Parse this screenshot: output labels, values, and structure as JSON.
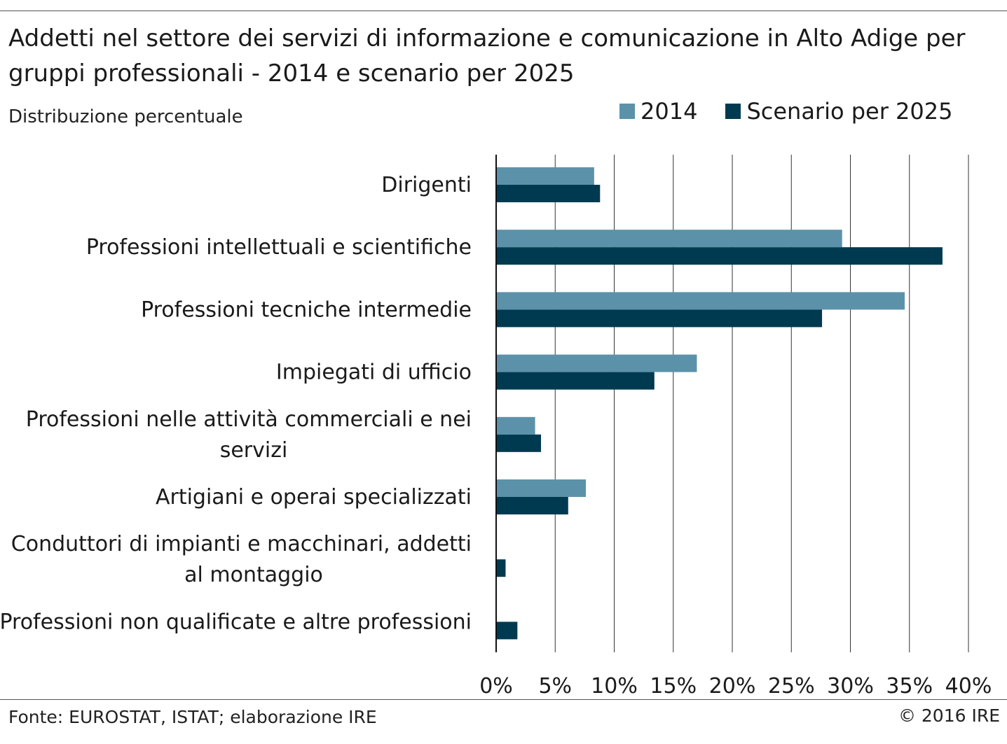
{
  "header": {
    "title": "Addetti nel settore dei servizi di informazione e comunicazione in Alto Adige per gruppi professionali - 2014 e scenario per 2025",
    "subtitle": "Distribuzione percentuale"
  },
  "footer": {
    "source": "Fonte: EUROSTAT, ISTAT; elaborazione IRE",
    "copyright": "© 2016 IRE"
  },
  "colors": {
    "series_2014": "#5b92aa",
    "series_2025": "#003a50",
    "grid": "#333333"
  },
  "chart_data": {
    "type": "bar",
    "orientation": "horizontal",
    "title": "Addetti nel settore dei servizi di informazione e comunicazione in Alto Adige per gruppi professionali - 2014 e scenario per 2025",
    "subtitle": "Distribuzione percentuale",
    "categories": [
      "Dirigenti",
      "Professioni intellettuali e scientifiche",
      "Professioni tecniche intermedie",
      "Impiegati di ufficio",
      "Professioni nelle attività commerciali e nei servizi",
      "Artigiani e operai specializzati",
      "Conduttori di impianti e macchinari, addetti al montaggio",
      "Professioni non qualificate e altre professioni"
    ],
    "category_lines": [
      [
        "Dirigenti"
      ],
      [
        "Professioni intellettuali e scientifiche"
      ],
      [
        "Professioni tecniche intermedie"
      ],
      [
        "Impiegati di ufficio"
      ],
      [
        "Professioni nelle attività commerciali e nei",
        "servizi"
      ],
      [
        "Artigiani e operai specializzati"
      ],
      [
        "Conduttori di impianti e macchinari, addetti",
        "al montaggio"
      ],
      [
        "Professioni non qualificate e altre professioni"
      ]
    ],
    "series": [
      {
        "name": "2014",
        "color": "#5b92aa",
        "values": [
          8.3,
          29.3,
          34.6,
          17.0,
          3.3,
          7.6,
          0.0,
          0.0
        ]
      },
      {
        "name": "Scenario per 2025",
        "color": "#003a50",
        "values": [
          8.8,
          37.8,
          27.6,
          13.4,
          3.8,
          6.1,
          0.8,
          1.8
        ]
      }
    ],
    "xlim": [
      0,
      40
    ],
    "xticks": [
      0,
      5,
      10,
      15,
      20,
      25,
      30,
      35,
      40
    ],
    "xtick_labels": [
      "0%",
      "5%",
      "10%",
      "15%",
      "20%",
      "25%",
      "30%",
      "35%",
      "40%"
    ],
    "grid": true,
    "legend_position": "top-right"
  }
}
